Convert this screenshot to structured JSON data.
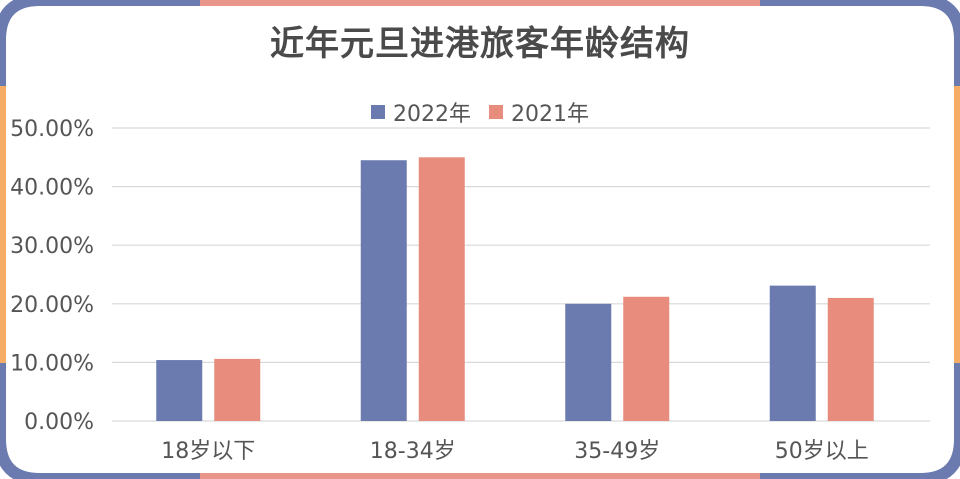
{
  "colors": {
    "border_blue": "#6b7bb0",
    "border_salmon": "#e8968a",
    "border_orange": "#f5ad66",
    "series_2022": "#6b7bb0",
    "series_2021": "#e88c7d",
    "gridline": "#d9d9d9",
    "text": "#555555"
  },
  "chart_data": {
    "type": "bar",
    "title": "近年元旦进港旅客年龄结构",
    "categories": [
      "18岁以下",
      "18-34岁",
      "35-49岁",
      "50岁以上"
    ],
    "series": [
      {
        "name": "2022年",
        "values": [
          0.104,
          0.445,
          0.2,
          0.231
        ]
      },
      {
        "name": "2021年",
        "values": [
          0.106,
          0.45,
          0.212,
          0.21
        ]
      }
    ],
    "ylim": [
      0,
      0.5
    ],
    "yticks": [
      "0.00%",
      "10.00%",
      "20.00%",
      "30.00%",
      "40.00%",
      "50.00%"
    ],
    "grid": true,
    "legend_position": "top"
  }
}
